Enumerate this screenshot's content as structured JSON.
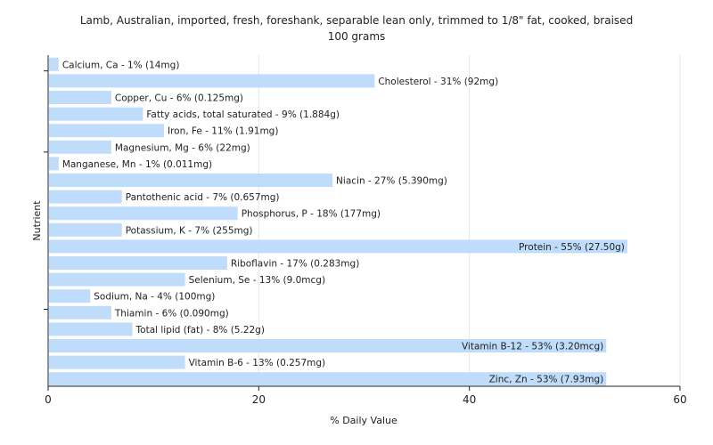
{
  "chart_data": {
    "type": "bar",
    "orientation": "horizontal",
    "title": "Lamb, Australian, imported, fresh, foreshank, separable lean only, trimmed to 1/8\" fat, cooked, braised",
    "subtitle": "100 grams",
    "xlabel": "% Daily Value",
    "ylabel": "Nutrient",
    "xlim": [
      0,
      60
    ],
    "xticks": [
      0,
      20,
      40,
      60
    ],
    "grid": true,
    "bar_color": "#bfdcfa",
    "categories": [
      "Calcium, Ca",
      "Cholesterol",
      "Copper, Cu",
      "Fatty acids, total saturated",
      "Iron, Fe",
      "Magnesium, Mg",
      "Manganese, Mn",
      "Niacin",
      "Pantothenic acid",
      "Phosphorus, P",
      "Potassium, K",
      "Protein",
      "Riboflavin",
      "Selenium, Se",
      "Sodium, Na",
      "Thiamin",
      "Total lipid (fat)",
      "Vitamin B-12",
      "Vitamin B-6",
      "Zinc, Zn"
    ],
    "values": [
      1,
      31,
      6,
      9,
      11,
      6,
      1,
      27,
      7,
      18,
      7,
      55,
      17,
      13,
      4,
      6,
      8,
      53,
      13,
      53
    ],
    "labels": [
      "Calcium, Ca - 1% (14mg)",
      "Cholesterol - 31% (92mg)",
      "Copper, Cu - 6% (0.125mg)",
      "Fatty acids, total saturated - 9% (1.884g)",
      "Iron, Fe - 11% (1.91mg)",
      "Magnesium, Mg - 6% (22mg)",
      "Manganese, Mn - 1% (0.011mg)",
      "Niacin - 27% (5.390mg)",
      "Pantothenic acid - 7% (0.657mg)",
      "Phosphorus, P - 18% (177mg)",
      "Potassium, K - 7% (255mg)",
      "Protein - 55% (27.50g)",
      "Riboflavin - 17% (0.283mg)",
      "Selenium, Se - 13% (9.0mcg)",
      "Sodium, Na - 4% (100mg)",
      "Thiamin - 6% (0.090mg)",
      "Total lipid (fat) - 8% (5.22g)",
      "Vitamin B-12 - 53% (3.20mcg)",
      "Vitamin B-6 - 13% (0.257mg)",
      "Zinc, Zn - 53% (7.93mg)"
    ]
  }
}
